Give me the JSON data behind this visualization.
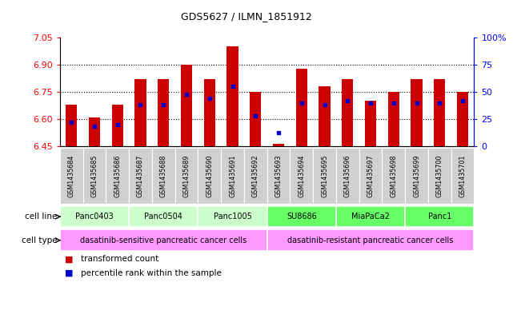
{
  "title": "GDS5627 / ILMN_1851912",
  "samples": [
    "GSM1435684",
    "GSM1435685",
    "GSM1435686",
    "GSM1435687",
    "GSM1435688",
    "GSM1435689",
    "GSM1435690",
    "GSM1435691",
    "GSM1435692",
    "GSM1435693",
    "GSM1435694",
    "GSM1435695",
    "GSM1435696",
    "GSM1435697",
    "GSM1435698",
    "GSM1435699",
    "GSM1435700",
    "GSM1435701"
  ],
  "transformed_count": [
    6.68,
    6.61,
    6.68,
    6.82,
    6.82,
    6.9,
    6.82,
    7.0,
    6.75,
    6.46,
    6.88,
    6.78,
    6.82,
    6.7,
    6.75,
    6.82,
    6.82,
    6.75
  ],
  "percentile_rank": [
    22,
    18,
    20,
    38,
    38,
    48,
    44,
    55,
    28,
    12,
    40,
    38,
    42,
    40,
    40,
    40,
    40,
    42
  ],
  "cell_lines": [
    {
      "name": "Panc0403",
      "start": 0,
      "end": 3,
      "color": "#ccffcc"
    },
    {
      "name": "Panc0504",
      "start": 3,
      "end": 6,
      "color": "#ccffcc"
    },
    {
      "name": "Panc1005",
      "start": 6,
      "end": 9,
      "color": "#ccffcc"
    },
    {
      "name": "SU8686",
      "start": 9,
      "end": 12,
      "color": "#66ff66"
    },
    {
      "name": "MiaPaCa2",
      "start": 12,
      "end": 15,
      "color": "#66ff66"
    },
    {
      "name": "Panc1",
      "start": 15,
      "end": 18,
      "color": "#66ff66"
    }
  ],
  "cell_types": [
    {
      "name": "dasatinib-sensitive pancreatic cancer cells",
      "start": 0,
      "end": 9,
      "color": "#ff99ff"
    },
    {
      "name": "dasatinib-resistant pancreatic cancer cells",
      "start": 9,
      "end": 18,
      "color": "#ff99ff"
    }
  ],
  "ylim_left": [
    6.45,
    7.05
  ],
  "ylim_right": [
    0,
    100
  ],
  "yticks_left": [
    6.45,
    6.6,
    6.75,
    6.9,
    7.05
  ],
  "yticks_right": [
    0,
    25,
    50,
    75,
    100
  ],
  "bar_color": "#cc0000",
  "percentile_color": "#0000cc",
  "sample_bg_color": "#d0d0d0",
  "grid_yticks": [
    6.6,
    6.75,
    6.9
  ]
}
